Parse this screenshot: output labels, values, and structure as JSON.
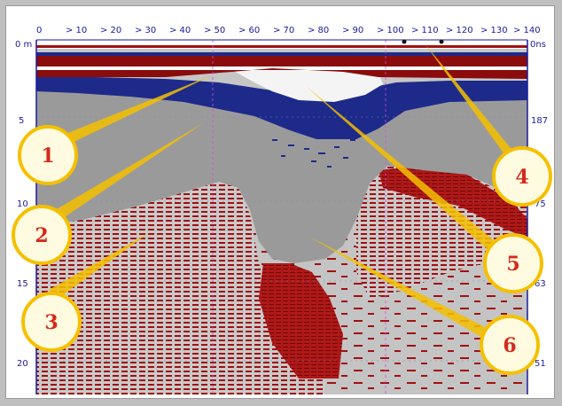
{
  "top_axis": {
    "labels": [
      "0",
      "> 10",
      "> 20",
      "> 30",
      "> 40",
      "> 50",
      "> 60",
      "> 70",
      "> 80",
      "> 90",
      "> 100",
      "> 110",
      "> 120",
      "> 130",
      "> 140"
    ]
  },
  "left_axis": {
    "labels": [
      "0 m",
      "5",
      "10",
      "15",
      "20"
    ]
  },
  "right_axis": {
    "labels": [
      "0ns",
      "187",
      "75",
      "63",
      "51"
    ]
  },
  "callouts": [
    {
      "label": "1"
    },
    {
      "label": "2"
    },
    {
      "label": "3"
    },
    {
      "label": "4"
    },
    {
      "label": "5"
    },
    {
      "label": "6"
    }
  ],
  "colors": {
    "red_layer": "#a01010",
    "navy_layer": "#1d2a8a",
    "gray_fill": "#9a9a9a",
    "callout_fill": "#fffbe0",
    "callout_ring": "#f5c000",
    "number_red": "#d42a1c",
    "axis_text": "#1a1aa0"
  }
}
